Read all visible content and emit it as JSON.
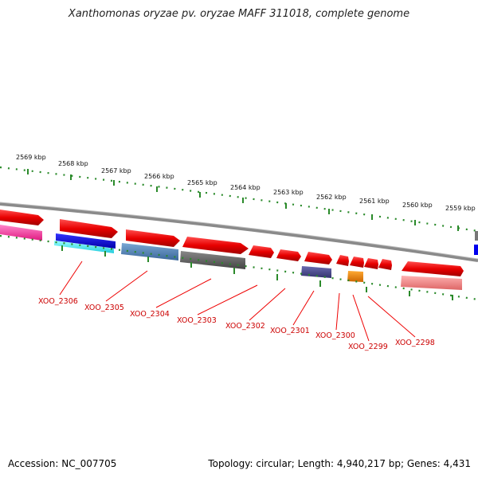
{
  "title": "Xanthomonas oryzae pv. oryzae MAFF 311018, complete genome",
  "footer": {
    "accession": "Accession: NC_007705",
    "topology": "Topology: circular; Length: 4,940,217 bp; Genes: 4,431"
  },
  "kbp_labels": [
    "2569 kbp",
    "2568 kbp",
    "2567 kbp",
    "2566 kbp",
    "2565 kbp",
    "2564 kbp",
    "2563 kbp",
    "2562 kbp",
    "2561 kbp",
    "2560 kbp",
    "2559 kbp"
  ],
  "gene_labels": [
    "XOO_2306",
    "XOO_2305",
    "XOO_2304",
    "XOO_2303",
    "XOO_2302",
    "XOO_2301",
    "XOO_2300",
    "XOO_2299",
    "XOO_2298"
  ],
  "colors": {
    "forward_gene": "#e80000",
    "pink": "#ff3399",
    "blue": "#0000cc",
    "cyan": "#33ddee",
    "steelblue": "#4477aa",
    "gray": "#555555",
    "navy": "#444488",
    "orange": "#ee8800",
    "light_red": "#ee8888",
    "backbone": "#888888",
    "ticks": "#2a8a2a",
    "label": "#cc0000"
  }
}
